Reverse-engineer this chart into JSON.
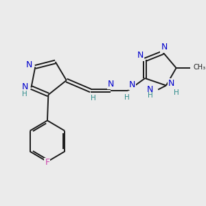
{
  "bg_color": "#ebebeb",
  "bond_color": "#1a1a1a",
  "N_color": "#0000cc",
  "H_color": "#2e8b8b",
  "F_color": "#cc44aa",
  "C_color": "#1a1a1a",
  "figsize": [
    3.0,
    3.0
  ],
  "dpi": 100,
  "lw": 1.4,
  "fs": 9.0,
  "fsh": 7.5,
  "xlim": [
    0,
    10
  ],
  "ylim": [
    0,
    10
  ]
}
